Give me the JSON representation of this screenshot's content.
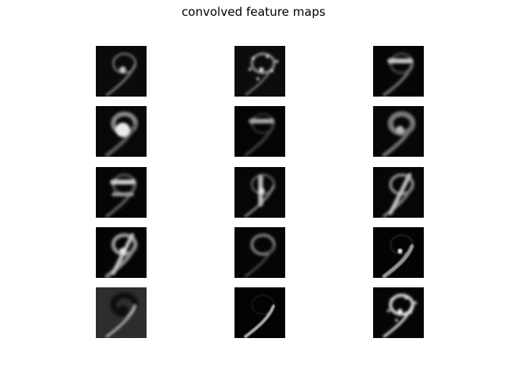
{
  "figure": {
    "title": "convolved feature maps"
  },
  "grid": {
    "rows": 5,
    "cols": 3,
    "colormap": "gray",
    "background": "#ffffff"
  },
  "maps": [
    {
      "subject": "handwritten digit 9 rendered as a grayscale filter response",
      "style": "faint-ring"
    },
    {
      "subject": "handwritten digit 9 rendered as a grayscale filter response",
      "style": "edge-speckle"
    },
    {
      "subject": "handwritten digit 9 rendered as a grayscale filter response",
      "style": "horizontal-band"
    },
    {
      "subject": "handwritten digit 9 rendered as a grayscale filter response",
      "style": "bright-blob"
    },
    {
      "subject": "handwritten digit 9 rendered as a grayscale filter response",
      "style": "horizontal-band-dark"
    },
    {
      "subject": "handwritten digit 9 rendered as a grayscale filter response",
      "style": "soft-ring"
    },
    {
      "subject": "handwritten digit 9 rendered as a grayscale filter response",
      "style": "double-band"
    },
    {
      "subject": "handwritten digit 9 rendered as a grayscale filter response",
      "style": "vertical-edge"
    },
    {
      "subject": "handwritten digit 9 rendered as a grayscale filter response",
      "style": "diagonal-edge"
    },
    {
      "subject": "handwritten digit 9 rendered as a grayscale filter response",
      "style": "bright-diagonal"
    },
    {
      "subject": "handwritten digit 9 rendered as a grayscale filter response",
      "style": "outline-ring"
    },
    {
      "subject": "handwritten digit 9 rendered as a grayscale filter response",
      "style": "thin-stroke"
    },
    {
      "subject": "handwritten digit 9 rendered as a grayscale filter response",
      "style": "gray-background"
    },
    {
      "subject": "handwritten digit 9 rendered as a grayscale filter response",
      "style": "stroke-only"
    },
    {
      "subject": "handwritten digit 9 rendered as a grayscale filter response",
      "style": "high-contrast-speckle"
    }
  ]
}
